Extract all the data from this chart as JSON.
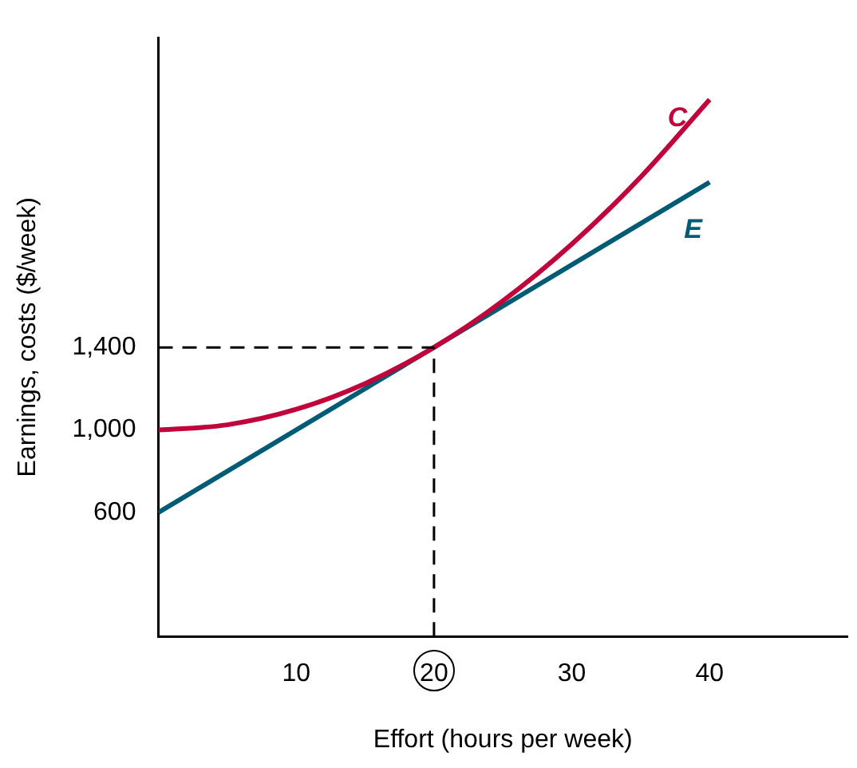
{
  "chart_data": {
    "type": "line",
    "xlabel": "Effort (hours per week)",
    "ylabel": "Earnings, costs ($/week)",
    "xlim": [
      0,
      50
    ],
    "xticks": [
      10,
      20,
      30,
      40
    ],
    "ylim": [
      0,
      2900
    ],
    "yticks": [
      600,
      {
        "value": 1000,
        "label": "1,000"
      },
      {
        "value": 1400,
        "label": "1,400"
      }
    ],
    "grid": false,
    "legend": false,
    "marker": "none",
    "line_style": "solid",
    "series": [
      {
        "name": "C",
        "color": "#c0053c",
        "x": [
          0,
          5,
          10,
          15,
          20,
          25,
          30,
          35,
          40
        ],
        "values": [
          1000,
          1025,
          1100,
          1225,
          1400,
          1625,
          1900,
          2225,
          2600
        ]
      },
      {
        "name": "E",
        "color": "#005c74",
        "x": [
          0,
          40
        ],
        "values": [
          600,
          2200
        ]
      }
    ],
    "ref_lines": [
      {
        "axis": "x",
        "value": 20,
        "line_style": "dashed",
        "color": "#000000"
      },
      {
        "axis": "y",
        "value": 1400,
        "line_style": "dashed",
        "color": "#000000"
      }
    ]
  }
}
